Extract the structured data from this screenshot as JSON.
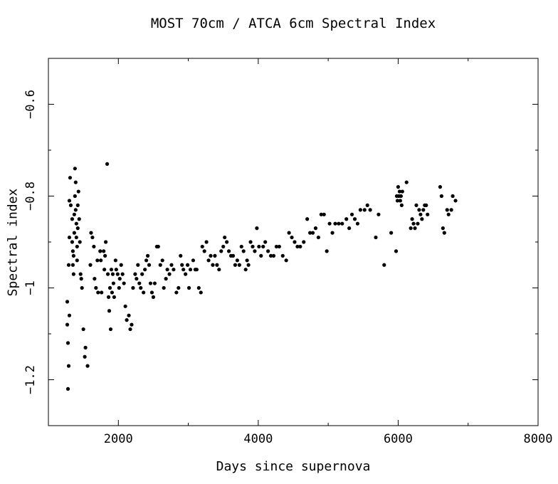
{
  "chart_data": {
    "type": "scatter",
    "title": "MOST 70cm / ATCA 6cm Spectral Index",
    "xlabel": "Days since supernova",
    "ylabel": "Spectral index",
    "xlim": [
      1000,
      8000
    ],
    "ylim": [
      -1.3,
      -0.5
    ],
    "xticks": [
      2000,
      4000,
      6000,
      8000
    ],
    "xtick_labels": [
      "2000",
      "4000",
      "6000",
      "8000"
    ],
    "yticks": [
      -0.6,
      -0.8,
      -1.0,
      -1.2
    ],
    "ytick_labels": [
      "−0.6",
      "−0.8",
      "−1",
      "−1.2"
    ],
    "grid": false,
    "series": [
      {
        "marker_color": "#000000",
        "points": [
          [
            1270,
            -1.03
          ],
          [
            1270,
            -1.08
          ],
          [
            1280,
            -1.12
          ],
          [
            1290,
            -1.17
          ],
          [
            1280,
            -1.22
          ],
          [
            1300,
            -1.06
          ],
          [
            1290,
            -0.95
          ],
          [
            1300,
            -0.89
          ],
          [
            1300,
            -0.81
          ],
          [
            1310,
            -0.76
          ],
          [
            1320,
            -0.82
          ],
          [
            1340,
            -0.85
          ],
          [
            1340,
            -0.9
          ],
          [
            1350,
            -0.92
          ],
          [
            1350,
            -0.95
          ],
          [
            1360,
            -0.97
          ],
          [
            1360,
            -0.93
          ],
          [
            1370,
            -0.88
          ],
          [
            1370,
            -0.84
          ],
          [
            1380,
            -0.8
          ],
          [
            1380,
            -0.74
          ],
          [
            1390,
            -0.77
          ],
          [
            1390,
            -0.83
          ],
          [
            1400,
            -0.86
          ],
          [
            1400,
            -0.89
          ],
          [
            1410,
            -0.91
          ],
          [
            1410,
            -0.94
          ],
          [
            1420,
            -0.87
          ],
          [
            1420,
            -0.82
          ],
          [
            1430,
            -0.79
          ],
          [
            1440,
            -0.85
          ],
          [
            1450,
            -0.9
          ],
          [
            1460,
            -0.97
          ],
          [
            1470,
            -0.98
          ],
          [
            1480,
            -1.0
          ],
          [
            1500,
            -1.09
          ],
          [
            1530,
            -1.13
          ],
          [
            1520,
            -1.15
          ],
          [
            1560,
            -1.17
          ],
          [
            1600,
            -0.95
          ],
          [
            1610,
            -0.88
          ],
          [
            1630,
            -0.89
          ],
          [
            1650,
            -0.91
          ],
          [
            1660,
            -0.98
          ],
          [
            1680,
            -1.0
          ],
          [
            1700,
            -0.94
          ],
          [
            1710,
            -1.01
          ],
          [
            1740,
            -0.92
          ],
          [
            1750,
            -0.94
          ],
          [
            1760,
            -1.01
          ],
          [
            1790,
            -0.92
          ],
          [
            1800,
            -0.96
          ],
          [
            1810,
            -0.93
          ],
          [
            1820,
            -0.9
          ],
          [
            1840,
            -0.73
          ],
          [
            1850,
            -0.97
          ],
          [
            1860,
            -1.02
          ],
          [
            1870,
            -1.05
          ],
          [
            1880,
            -1.0
          ],
          [
            1890,
            -1.09
          ],
          [
            1900,
            -0.96
          ],
          [
            1910,
            -1.01
          ],
          [
            1920,
            -0.97
          ],
          [
            1930,
            -0.99
          ],
          [
            1940,
            -1.02
          ],
          [
            1960,
            -0.94
          ],
          [
            1970,
            -0.96
          ],
          [
            1990,
            -0.97
          ],
          [
            2010,
            -1.0
          ],
          [
            2020,
            -0.98
          ],
          [
            2040,
            -0.95
          ],
          [
            2060,
            -0.97
          ],
          [
            2080,
            -0.99
          ],
          [
            2100,
            -1.04
          ],
          [
            2120,
            -1.07
          ],
          [
            2150,
            -1.06
          ],
          [
            2170,
            -1.09
          ],
          [
            2190,
            -1.08
          ],
          [
            2210,
            -1.0
          ],
          [
            2240,
            -0.97
          ],
          [
            2260,
            -0.98
          ],
          [
            2280,
            -0.95
          ],
          [
            2300,
            -0.99
          ],
          [
            2320,
            -1.0
          ],
          [
            2340,
            -0.97
          ],
          [
            2360,
            -1.01
          ],
          [
            2380,
            -0.96
          ],
          [
            2400,
            -0.94
          ],
          [
            2420,
            -0.93
          ],
          [
            2440,
            -0.95
          ],
          [
            2460,
            -0.99
          ],
          [
            2480,
            -1.01
          ],
          [
            2500,
            -1.02
          ],
          [
            2520,
            -0.99
          ],
          [
            2550,
            -0.91
          ],
          [
            2570,
            -0.91
          ],
          [
            2600,
            -0.95
          ],
          [
            2630,
            -0.94
          ],
          [
            2650,
            -1.0
          ],
          [
            2680,
            -0.98
          ],
          [
            2700,
            -0.96
          ],
          [
            2730,
            -0.97
          ],
          [
            2760,
            -0.95
          ],
          [
            2790,
            -0.96
          ],
          [
            2830,
            -1.01
          ],
          [
            2860,
            -1.0
          ],
          [
            2890,
            -0.93
          ],
          [
            2910,
            -0.95
          ],
          [
            2930,
            -0.96
          ],
          [
            2960,
            -0.97
          ],
          [
            2990,
            -0.95
          ],
          [
            3010,
            -1.0
          ],
          [
            3030,
            -0.96
          ],
          [
            3070,
            -0.94
          ],
          [
            3100,
            -0.96
          ],
          [
            3120,
            -0.96
          ],
          [
            3150,
            -1.0
          ],
          [
            3180,
            -1.01
          ],
          [
            3200,
            -0.91
          ],
          [
            3230,
            -0.92
          ],
          [
            3260,
            -0.9
          ],
          [
            3290,
            -0.94
          ],
          [
            3320,
            -0.93
          ],
          [
            3350,
            -0.95
          ],
          [
            3380,
            -0.93
          ],
          [
            3410,
            -0.95
          ],
          [
            3440,
            -0.96
          ],
          [
            3470,
            -0.92
          ],
          [
            3500,
            -0.91
          ],
          [
            3520,
            -0.89
          ],
          [
            3550,
            -0.9
          ],
          [
            3580,
            -0.92
          ],
          [
            3610,
            -0.93
          ],
          [
            3640,
            -0.93
          ],
          [
            3670,
            -0.95
          ],
          [
            3700,
            -0.94
          ],
          [
            3730,
            -0.95
          ],
          [
            3760,
            -0.91
          ],
          [
            3790,
            -0.92
          ],
          [
            3820,
            -0.96
          ],
          [
            3840,
            -0.94
          ],
          [
            3860,
            -0.95
          ],
          [
            3890,
            -0.9
          ],
          [
            3920,
            -0.91
          ],
          [
            3950,
            -0.92
          ],
          [
            3980,
            -0.87
          ],
          [
            4010,
            -0.91
          ],
          [
            4040,
            -0.93
          ],
          [
            4070,
            -0.91
          ],
          [
            4100,
            -0.9
          ],
          [
            4140,
            -0.92
          ],
          [
            4180,
            -0.93
          ],
          [
            4220,
            -0.93
          ],
          [
            4260,
            -0.91
          ],
          [
            4300,
            -0.91
          ],
          [
            4350,
            -0.93
          ],
          [
            4400,
            -0.94
          ],
          [
            4440,
            -0.88
          ],
          [
            4480,
            -0.89
          ],
          [
            4520,
            -0.9
          ],
          [
            4560,
            -0.91
          ],
          [
            4600,
            -0.91
          ],
          [
            4650,
            -0.9
          ],
          [
            4700,
            -0.85
          ],
          [
            4740,
            -0.88
          ],
          [
            4780,
            -0.88
          ],
          [
            4820,
            -0.87
          ],
          [
            4860,
            -0.89
          ],
          [
            4900,
            -0.84
          ],
          [
            4940,
            -0.84
          ],
          [
            4980,
            -0.92
          ],
          [
            5020,
            -0.86
          ],
          [
            5060,
            -0.88
          ],
          [
            5100,
            -0.86
          ],
          [
            5150,
            -0.86
          ],
          [
            5200,
            -0.86
          ],
          [
            5260,
            -0.85
          ],
          [
            5300,
            -0.87
          ],
          [
            5340,
            -0.84
          ],
          [
            5380,
            -0.85
          ],
          [
            5420,
            -0.86
          ],
          [
            5460,
            -0.83
          ],
          [
            5520,
            -0.83
          ],
          [
            5560,
            -0.82
          ],
          [
            5600,
            -0.83
          ],
          [
            5680,
            -0.89
          ],
          [
            5720,
            -0.84
          ],
          [
            5800,
            -0.95
          ],
          [
            5900,
            -0.88
          ],
          [
            5970,
            -0.92
          ],
          [
            5980,
            -0.8
          ],
          [
            5990,
            -0.81
          ],
          [
            6000,
            -0.78
          ],
          [
            6010,
            -0.8
          ],
          [
            6020,
            -0.79
          ],
          [
            6030,
            -0.81
          ],
          [
            6040,
            -0.8
          ],
          [
            6050,
            -0.82
          ],
          [
            6060,
            -0.79
          ],
          [
            6120,
            -0.77
          ],
          [
            6180,
            -0.87
          ],
          [
            6200,
            -0.85
          ],
          [
            6220,
            -0.86
          ],
          [
            6240,
            -0.87
          ],
          [
            6260,
            -0.82
          ],
          [
            6280,
            -0.86
          ],
          [
            6300,
            -0.83
          ],
          [
            6320,
            -0.84
          ],
          [
            6340,
            -0.85
          ],
          [
            6360,
            -0.83
          ],
          [
            6380,
            -0.82
          ],
          [
            6400,
            -0.82
          ],
          [
            6420,
            -0.84
          ],
          [
            6600,
            -0.78
          ],
          [
            6620,
            -0.8
          ],
          [
            6640,
            -0.87
          ],
          [
            6660,
            -0.88
          ],
          [
            6700,
            -0.83
          ],
          [
            6720,
            -0.84
          ],
          [
            6760,
            -0.83
          ],
          [
            6780,
            -0.8
          ],
          [
            6820,
            -0.81
          ]
        ]
      }
    ]
  }
}
